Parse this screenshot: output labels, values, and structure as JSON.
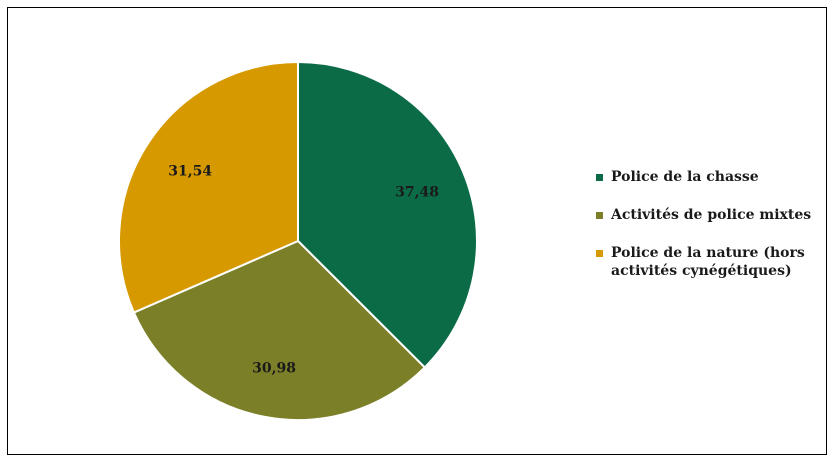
{
  "chart_data": {
    "type": "pie",
    "categories": [
      "Police de la chasse",
      "Activités de police mixtes",
      "Police de la nature (hors activités cynégétiques)"
    ],
    "values": [
      37.48,
      30.98,
      31.54
    ],
    "value_labels": [
      "37,48",
      "30,98",
      "31,54"
    ],
    "colors": [
      "#0b6b47",
      "#7b7f28",
      "#d69a00"
    ],
    "start_angle_deg": 0,
    "direction": "clockwise",
    "legend_position": "right"
  }
}
